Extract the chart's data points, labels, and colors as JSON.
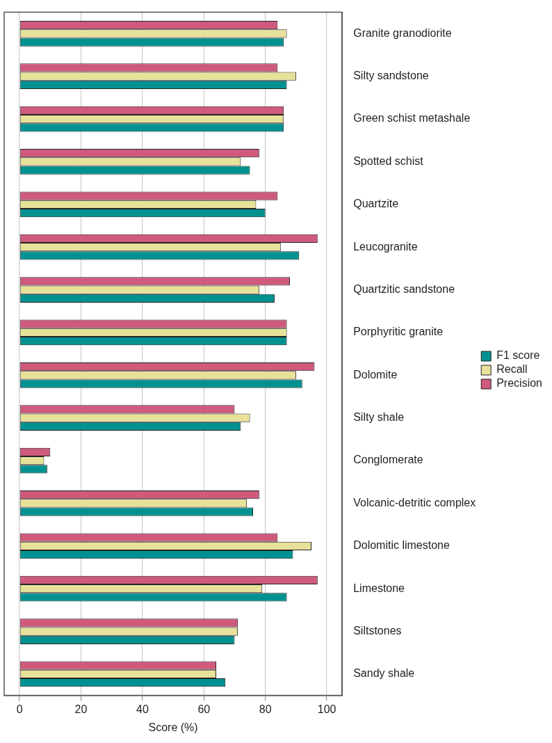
{
  "chart_data": {
    "type": "bar",
    "orientation": "horizontal",
    "xlabel": "Score (%)",
    "categories": [
      "Granite granodiorite",
      "Silty sandstone",
      "Green schist metashale",
      "Spotted schist",
      "Quartzite",
      "Leucogranite",
      "Quartzitic sandstone",
      "Porphyritic granite",
      "Dolomite",
      "Silty shale",
      "Conglomerate",
      "Volcanic-detritic complex",
      "Dolomitic limestone",
      "Limestone",
      "Siltstones",
      "Sandy shale"
    ],
    "series": [
      {
        "name": "F1 score",
        "color": "#009190",
        "values": [
          86,
          87,
          86,
          75,
          80,
          91,
          83,
          87,
          92,
          72,
          9,
          76,
          89,
          87,
          70,
          67
        ]
      },
      {
        "name": "Recall",
        "color": "#e8e19a",
        "values": [
          87,
          90,
          86,
          72,
          77,
          85,
          78,
          87,
          90,
          75,
          8,
          74,
          95,
          79,
          71,
          64
        ]
      },
      {
        "name": "Precision",
        "color": "#cf5a7c",
        "values": [
          84,
          84,
          86,
          78,
          84,
          97,
          88,
          87,
          96,
          70,
          10,
          78,
          84,
          97,
          71,
          64
        ]
      }
    ],
    "xlim": [
      -5,
      105
    ],
    "xticks": [
      0,
      20,
      40,
      60,
      80,
      100
    ],
    "grid": "x",
    "legend": "right"
  }
}
